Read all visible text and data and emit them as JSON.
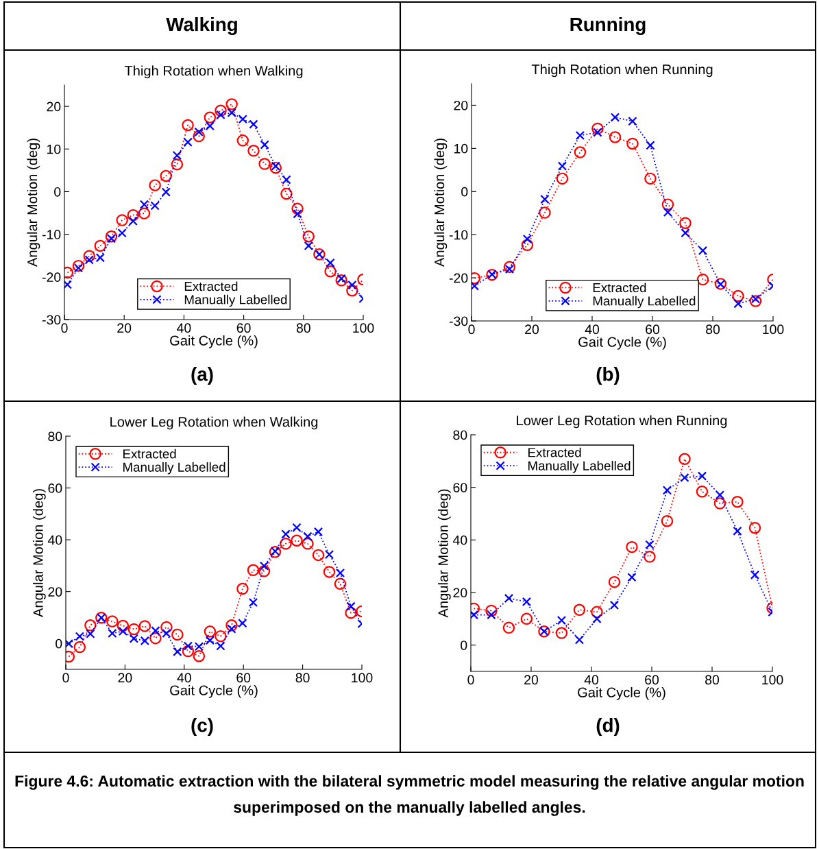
{
  "chart_data": [
    {
      "type": "line",
      "title": "Thigh Rotation when Walking",
      "xlabel": "Gait Cycle (%)",
      "ylabel": "Angular Motion (deg)",
      "annotations": [
        "Walking",
        "(a)"
      ],
      "x": [
        1,
        4.7,
        8.3,
        12.0,
        15.7,
        19.3,
        23.0,
        26.7,
        30.3,
        34.0,
        37.7,
        41.3,
        45.0,
        48.7,
        52.3,
        56.0,
        59.7,
        63.3,
        67.0,
        70.7,
        74.3,
        78.0,
        81.7,
        85.3,
        89.0,
        92.7,
        96.3,
        100
      ],
      "series": [
        {
          "name": "Extracted",
          "color": "#ff0000",
          "marker": "circle",
          "values": [
            -19.0,
            -17.4,
            -15.1,
            -12.7,
            -10.5,
            -6.7,
            -5.5,
            -5.1,
            1.5,
            3.7,
            6.4,
            15.6,
            13.0,
            17.4,
            19.0,
            20.5,
            12.0,
            9.6,
            6.5,
            5.6,
            -0.5,
            -4.0,
            -10.5,
            -14.7,
            -18.7,
            -20.8,
            -23.2,
            -20.6
          ]
        },
        {
          "name": "Manually Labelled",
          "color": "#0000ff",
          "marker": "cross",
          "values": [
            -21.8,
            -17.9,
            -16.0,
            -15.5,
            -11.0,
            -9.7,
            -6.9,
            -3.0,
            -3.3,
            -0.1,
            8.5,
            11.6,
            14.0,
            15.4,
            18.0,
            18.5,
            17.0,
            15.8,
            11.0,
            6.0,
            2.8,
            -5.2,
            -12.7,
            -14.7,
            -16.7,
            -20.4,
            -21.9,
            -25.1
          ]
        }
      ],
      "xlim": [
        0,
        100
      ],
      "xticks": [
        0,
        20,
        40,
        60,
        80,
        100
      ],
      "ylim": [
        -30,
        25
      ],
      "yticks": [
        -30,
        -20,
        -10,
        0,
        10,
        20
      ],
      "line_style": "dotted",
      "legend": "bottom",
      "grid": false
    },
    {
      "type": "line",
      "title": "Thigh Rotation when Running",
      "xlabel": "Gait Cycle (%)",
      "ylabel": "Angular Motion (deg)",
      "annotations": [
        "Running",
        "(b)"
      ],
      "x": [
        1,
        6.8,
        12.6,
        18.5,
        24.3,
        30.1,
        36.0,
        41.8,
        47.6,
        53.4,
        59.3,
        65.1,
        70.9,
        76.7,
        82.6,
        88.4,
        94.2,
        100
      ],
      "series": [
        {
          "name": "Extracted",
          "color": "#ff0000",
          "marker": "circle",
          "values": [
            -20.1,
            -19.3,
            -17.5,
            -12.4,
            -4.9,
            3.0,
            9.1,
            14.6,
            12.6,
            11.1,
            3.0,
            -3.0,
            -7.3,
            -20.4,
            -21.4,
            -24.2,
            -25.4,
            -20.4
          ]
        },
        {
          "name": "Manually Labelled",
          "color": "#0000ff",
          "marker": "cross",
          "values": [
            -21.9,
            -19.2,
            -18.0,
            -11.0,
            -1.8,
            5.9,
            13.0,
            13.7,
            17.2,
            16.3,
            10.7,
            -4.8,
            -9.6,
            -13.7,
            -21.5,
            -26.0,
            -24.9,
            -21.9
          ]
        }
      ],
      "xlim": [
        0,
        100
      ],
      "xticks": [
        0,
        20,
        40,
        60,
        80,
        100
      ],
      "ylim": [
        -30,
        25
      ],
      "yticks": [
        -30,
        -20,
        -10,
        0,
        10,
        20
      ],
      "line_style": "dotted",
      "legend": "bottom",
      "grid": false
    },
    {
      "type": "line",
      "title": "Lower Leg Rotation when Walking",
      "xlabel": "Gait Cycle (%)",
      "ylabel": "Angular Motion (deg)",
      "annotations": [
        "(c)"
      ],
      "x": [
        1,
        4.7,
        8.3,
        12.0,
        15.7,
        19.3,
        23.0,
        26.7,
        30.3,
        34.0,
        37.7,
        41.3,
        45.0,
        48.7,
        52.3,
        56.0,
        59.7,
        63.3,
        67.0,
        70.7,
        74.3,
        78.0,
        81.7,
        85.3,
        89.0,
        92.7,
        96.3,
        100
      ],
      "series": [
        {
          "name": "Extracted",
          "color": "#ff0000",
          "marker": "circle",
          "values": [
            -5.1,
            -1.4,
            7.0,
            9.9,
            8.5,
            6.8,
            5.5,
            6.7,
            2.0,
            6.3,
            3.4,
            -3.0,
            -4.9,
            4.6,
            2.8,
            7.0,
            21.1,
            28.3,
            27.9,
            35.3,
            38.5,
            39.7,
            38.5,
            34.1,
            27.6,
            23.0,
            11.8,
            12.4
          ]
        },
        {
          "name": "Manually Labelled",
          "color": "#0000ff",
          "marker": "cross",
          "values": [
            -0.1,
            2.7,
            3.7,
            9.9,
            3.9,
            4.7,
            1.9,
            1.0,
            4.9,
            3.9,
            -3.2,
            -1.0,
            -1.2,
            1.2,
            -1.0,
            5.6,
            7.8,
            15.8,
            29.9,
            35.6,
            42.2,
            44.7,
            41.3,
            43.1,
            34.3,
            27.2,
            14.3,
            7.6
          ]
        }
      ],
      "xlim": [
        0,
        100
      ],
      "xticks": [
        0,
        20,
        40,
        60,
        80,
        100
      ],
      "ylim": [
        -10,
        80
      ],
      "yticks": [
        0,
        20,
        40,
        60,
        80
      ],
      "line_style": "dotted",
      "legend": "top left",
      "grid": false
    },
    {
      "type": "line",
      "title": "Lower Leg Rotation when Running",
      "xlabel": "Gait Cycle (%)",
      "ylabel": "Angular Motion (deg)",
      "annotations": [
        "(d)",
        "Figure 4.6: Automatic extraction with the bilateral symmetric model measuring the relative angular motion superimposed on the manually labelled angles."
      ],
      "x": [
        1,
        6.8,
        12.6,
        18.5,
        24.3,
        30.1,
        36.0,
        41.8,
        47.6,
        53.4,
        59.3,
        65.1,
        70.9,
        76.7,
        82.6,
        88.4,
        94.2,
        100
      ],
      "series": [
        {
          "name": "Extracted",
          "color": "#ff0000",
          "marker": "circle",
          "values": [
            13.9,
            13.1,
            6.6,
            10.0,
            5.2,
            4.6,
            13.4,
            12.6,
            24.0,
            37.3,
            33.6,
            47.2,
            70.8,
            58.4,
            53.9,
            54.5,
            44.6,
            14.1
          ]
        },
        {
          "name": "Manually Labelled",
          "color": "#0000ff",
          "marker": "cross",
          "values": [
            11.5,
            11.5,
            17.8,
            16.5,
            5.2,
            9.4,
            2.0,
            10.0,
            15.2,
            25.8,
            38.2,
            58.9,
            63.7,
            64.3,
            57.1,
            43.4,
            26.7,
            12.6
          ]
        }
      ],
      "xlim": [
        0,
        100
      ],
      "xticks": [
        0,
        20,
        40,
        60,
        80,
        100
      ],
      "ylim": [
        -10,
        80
      ],
      "yticks": [
        0,
        20,
        40,
        60,
        80
      ],
      "line_style": "dotted",
      "legend": "top left",
      "grid": false
    }
  ]
}
